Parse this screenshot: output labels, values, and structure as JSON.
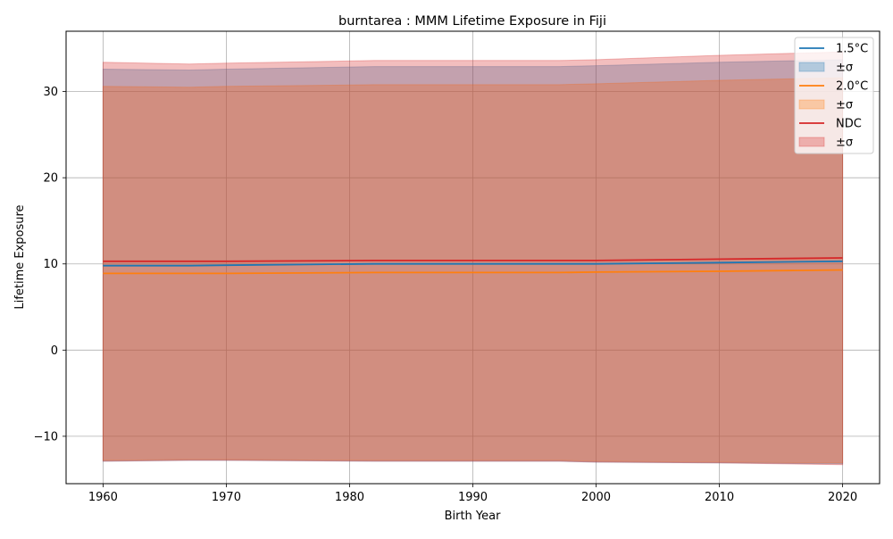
{
  "chart_data": {
    "type": "area",
    "title": "burntarea : MMM Lifetime Exposure in Fiji",
    "xlabel": "Birth Year",
    "ylabel": "Lifetime Exposure",
    "xlim": [
      1957,
      2023
    ],
    "ylim": [
      -15.5,
      37
    ],
    "xticks": [
      1960,
      1970,
      1980,
      1990,
      2000,
      2010,
      2020
    ],
    "yticks": [
      -10,
      0,
      10,
      20,
      30
    ],
    "ytick_labels": [
      "−10",
      "0",
      "10",
      "20",
      "30"
    ],
    "grid": true,
    "legend_position": "top-right",
    "legend_entries": [
      "1.5°C",
      "±σ",
      "2.0°C",
      "±σ",
      "NDC",
      "±σ"
    ],
    "x": [
      1960,
      1967,
      1970,
      1982,
      1990,
      1997,
      2000,
      2010,
      2020
    ],
    "series": [
      {
        "name": "1.5°C",
        "color": "#1f77b4",
        "values": [
          9.8,
          9.8,
          9.85,
          10.0,
          10.0,
          10.0,
          10.0,
          10.15,
          10.3
        ],
        "upper": [
          32.6,
          32.5,
          32.6,
          32.9,
          32.9,
          32.9,
          33.0,
          33.4,
          33.7
        ],
        "lower": [
          -12.9,
          -12.8,
          -12.8,
          -12.9,
          -12.9,
          -12.9,
          -13.0,
          -13.1,
          -13.2
        ]
      },
      {
        "name": "2.0°C",
        "color": "#ff7f0e",
        "values": [
          8.9,
          8.9,
          8.9,
          9.0,
          9.0,
          9.0,
          9.05,
          9.15,
          9.3
        ],
        "upper": [
          30.6,
          30.5,
          30.6,
          30.8,
          30.8,
          30.8,
          30.9,
          31.3,
          31.6
        ],
        "lower": [
          -12.8,
          -12.7,
          -12.7,
          -12.8,
          -12.8,
          -12.8,
          -12.9,
          -13.0,
          -13.1
        ]
      },
      {
        "name": "NDC",
        "color": "#d62728",
        "values": [
          10.3,
          10.3,
          10.3,
          10.4,
          10.4,
          10.4,
          10.4,
          10.55,
          10.7
        ],
        "upper": [
          33.4,
          33.2,
          33.3,
          33.6,
          33.6,
          33.6,
          33.7,
          34.2,
          34.6
        ],
        "lower": [
          -12.9,
          -12.8,
          -12.8,
          -12.9,
          -12.9,
          -12.9,
          -13.0,
          -13.1,
          -13.3
        ]
      }
    ]
  }
}
